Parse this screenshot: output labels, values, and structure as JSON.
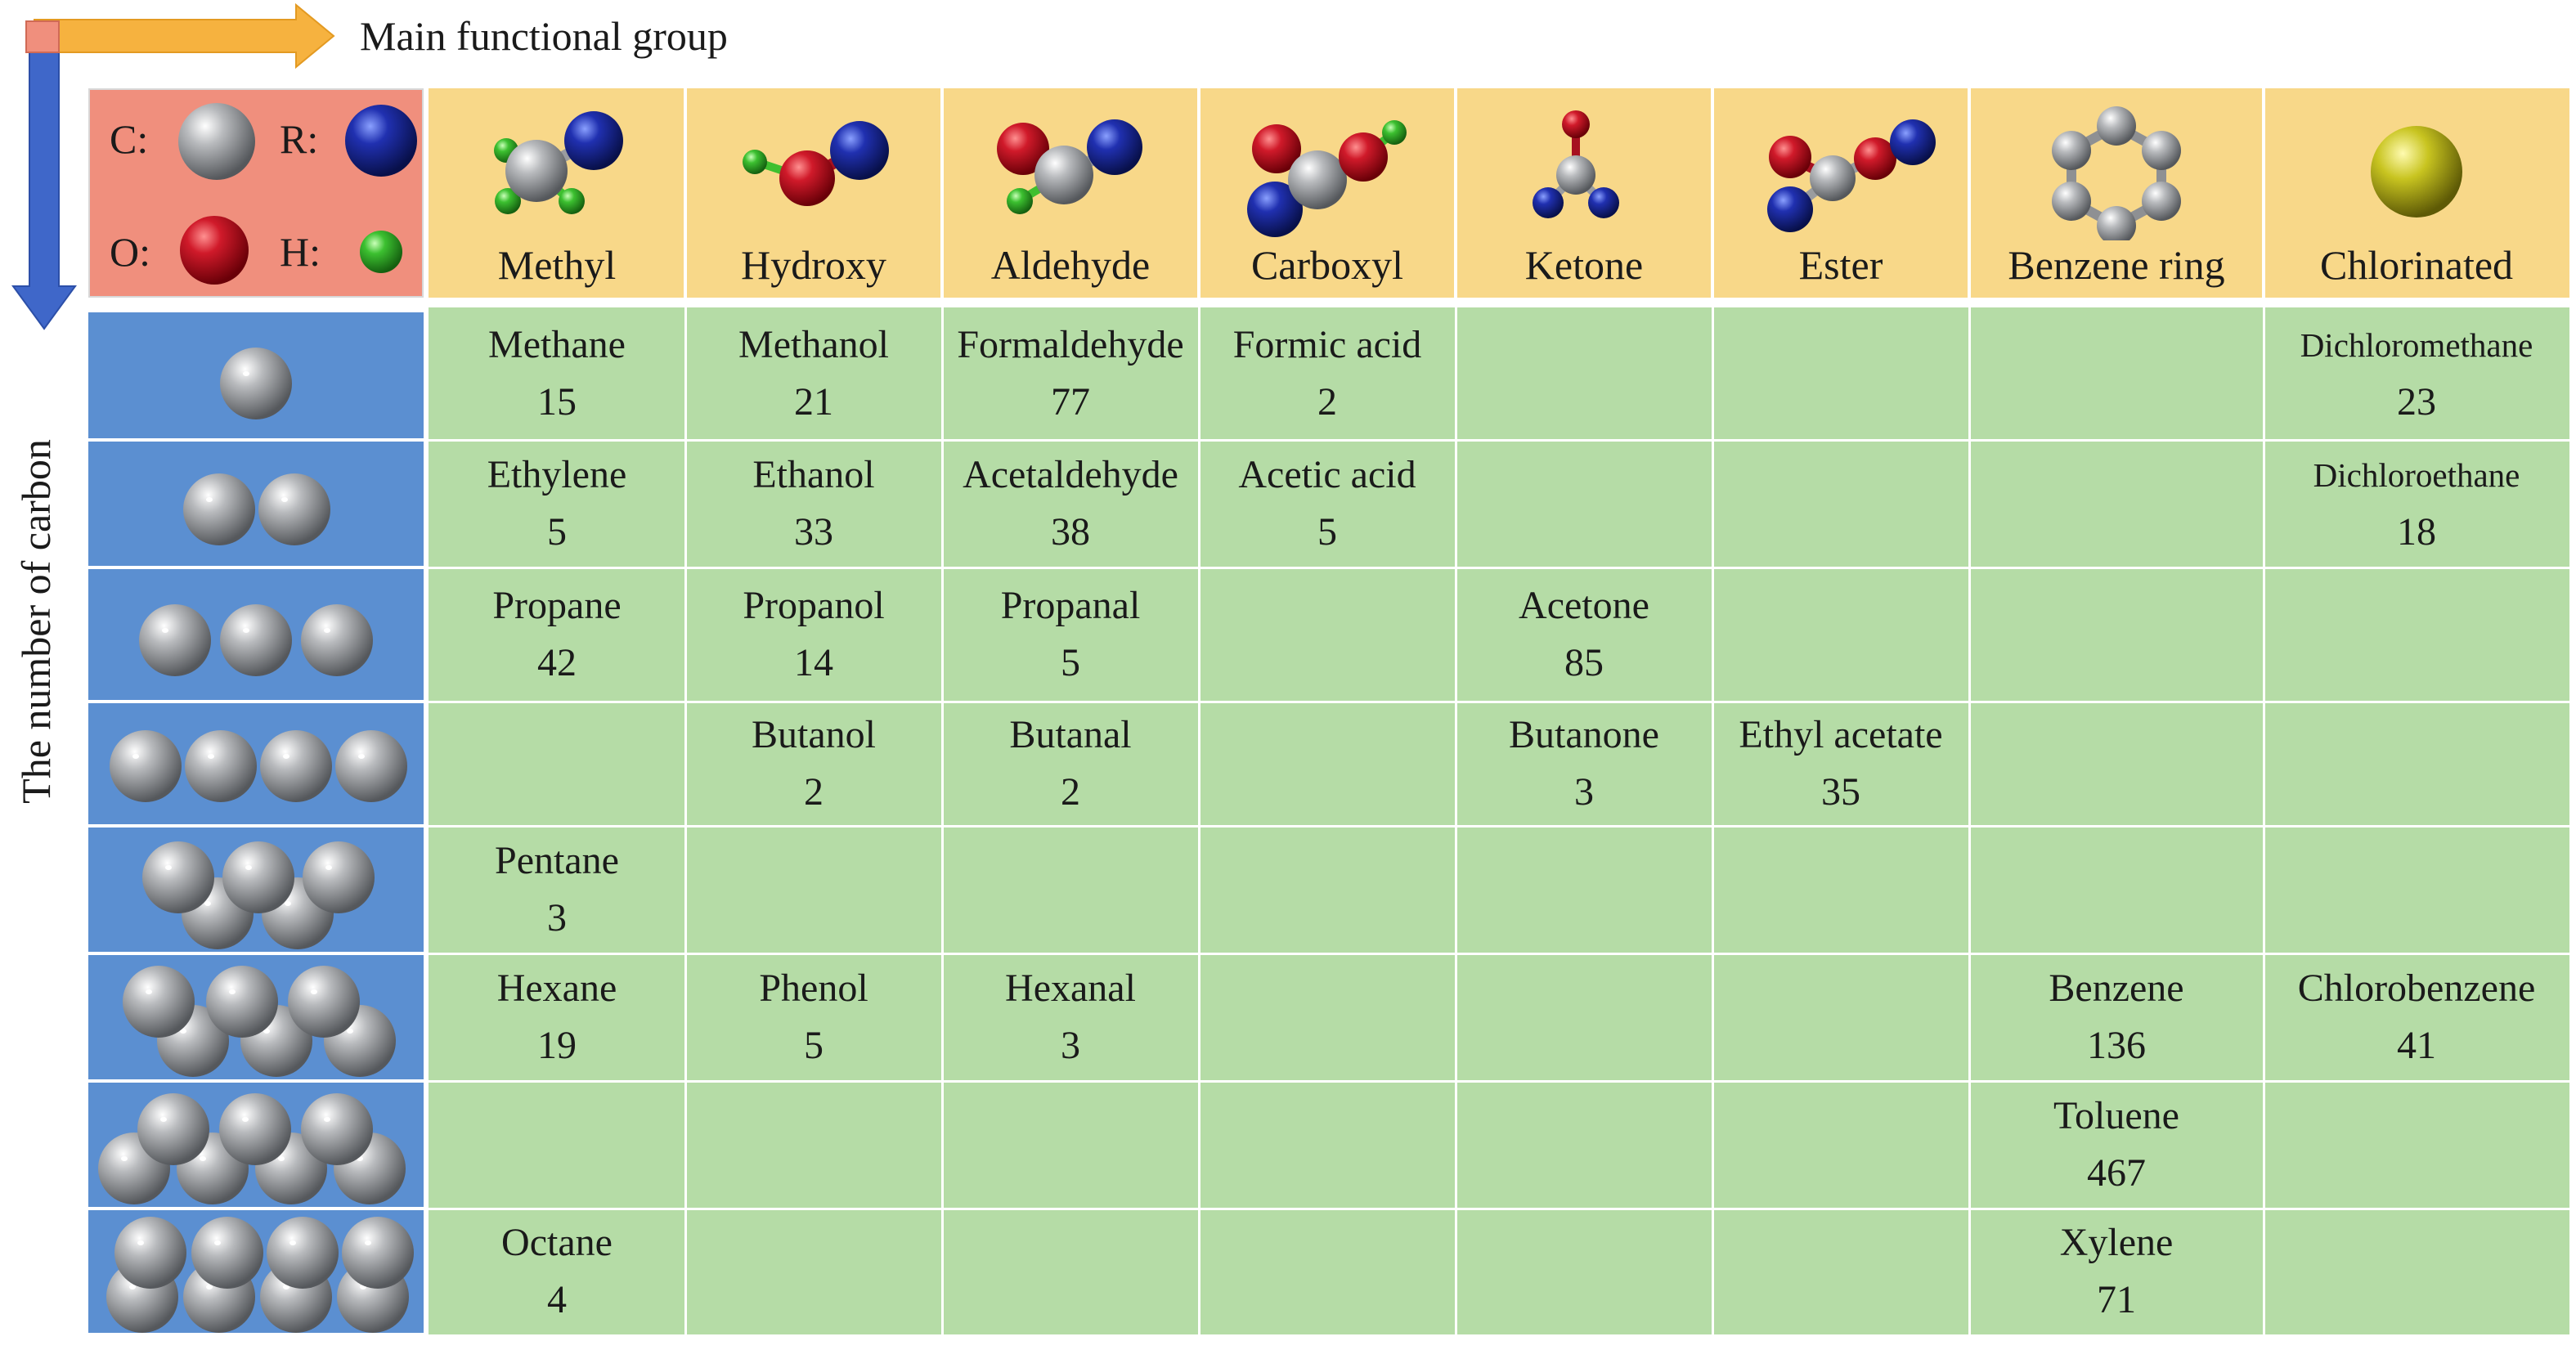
{
  "axis": {
    "x_title": "Main functional group",
    "y_title": "The number of carbon"
  },
  "legend": {
    "items": [
      {
        "label": "C:",
        "atom": "carbon",
        "color": "#a9abae"
      },
      {
        "label": "R:",
        "atom": "residual-group",
        "color": "#1e2aa0"
      },
      {
        "label": "O:",
        "atom": "oxygen",
        "color": "#c01626"
      },
      {
        "label": "H:",
        "atom": "hydrogen",
        "color": "#3fbf2f"
      }
    ]
  },
  "colors": {
    "carbon": "#a9abae",
    "oxygen": "#c01626",
    "residual": "#1e2aa0",
    "hydrogen": "#3fbf2f",
    "chlorine": "#c5c21e",
    "header_bg": "#f8d889",
    "legend_bg": "#f08f7d",
    "grid_bg": "#b5dca6",
    "row_icon_bg": "#5b8fd1",
    "arrow_x": "#f6b23f",
    "arrow_y": "#3f67c9"
  },
  "columns": [
    {
      "name": "Methyl",
      "icon": "methyl-molecule-icon"
    },
    {
      "name": "Hydroxy",
      "icon": "hydroxy-molecule-icon"
    },
    {
      "name": "Aldehyde",
      "icon": "aldehyde-molecule-icon"
    },
    {
      "name": "Carboxyl",
      "icon": "carboxyl-molecule-icon"
    },
    {
      "name": "Ketone",
      "icon": "ketone-molecule-icon"
    },
    {
      "name": "Ester",
      "icon": "ester-molecule-icon"
    },
    {
      "name": "Benzene ring",
      "icon": "benzene-ring-molecule-icon"
    },
    {
      "name": "Chlorinated",
      "icon": "chlorine-atom-icon"
    }
  ],
  "rows": [
    {
      "carbons": 1,
      "cells": [
        {
          "name": "Methane",
          "count": "15"
        },
        {
          "name": "Methanol",
          "count": "21"
        },
        {
          "name": "Formaldehyde",
          "count": "77"
        },
        {
          "name": "Formic acid",
          "count": "2"
        },
        null,
        null,
        null,
        {
          "name": "Dichloromethane",
          "count": "23"
        }
      ]
    },
    {
      "carbons": 2,
      "cells": [
        {
          "name": "Ethylene",
          "count": "5"
        },
        {
          "name": "Ethanol",
          "count": "33"
        },
        {
          "name": "Acetaldehyde",
          "count": "38"
        },
        {
          "name": "Acetic acid",
          "count": "5"
        },
        null,
        null,
        null,
        {
          "name": "Dichloroethane",
          "count": "18"
        }
      ]
    },
    {
      "carbons": 3,
      "cells": [
        {
          "name": "Propane",
          "count": "42"
        },
        {
          "name": "Propanol",
          "count": "14"
        },
        {
          "name": "Propanal",
          "count": "5"
        },
        null,
        {
          "name": "Acetone",
          "count": "85"
        },
        null,
        null,
        null
      ]
    },
    {
      "carbons": 4,
      "cells": [
        null,
        {
          "name": "Butanol",
          "count": "2"
        },
        {
          "name": "Butanal",
          "count": "2"
        },
        null,
        {
          "name": "Butanone",
          "count": "3"
        },
        {
          "name": "Ethyl acetate",
          "count": "35"
        },
        null,
        null
      ]
    },
    {
      "carbons": 5,
      "cells": [
        {
          "name": "Pentane",
          "count": "3"
        },
        null,
        null,
        null,
        null,
        null,
        null,
        null
      ]
    },
    {
      "carbons": 6,
      "cells": [
        {
          "name": "Hexane",
          "count": "19"
        },
        {
          "name": "Phenol",
          "count": "5"
        },
        {
          "name": "Hexanal",
          "count": "3"
        },
        null,
        null,
        null,
        {
          "name": "Benzene",
          "count": "136"
        },
        {
          "name": "Chlorobenzene",
          "count": "41"
        }
      ]
    },
    {
      "carbons": 7,
      "cells": [
        null,
        null,
        null,
        null,
        null,
        null,
        {
          "name": "Toluene",
          "count": "467"
        },
        null
      ]
    },
    {
      "carbons": 8,
      "cells": [
        {
          "name": "Octane",
          "count": "4"
        },
        null,
        null,
        null,
        null,
        null,
        {
          "name": "Xylene",
          "count": "71"
        },
        null
      ]
    }
  ]
}
